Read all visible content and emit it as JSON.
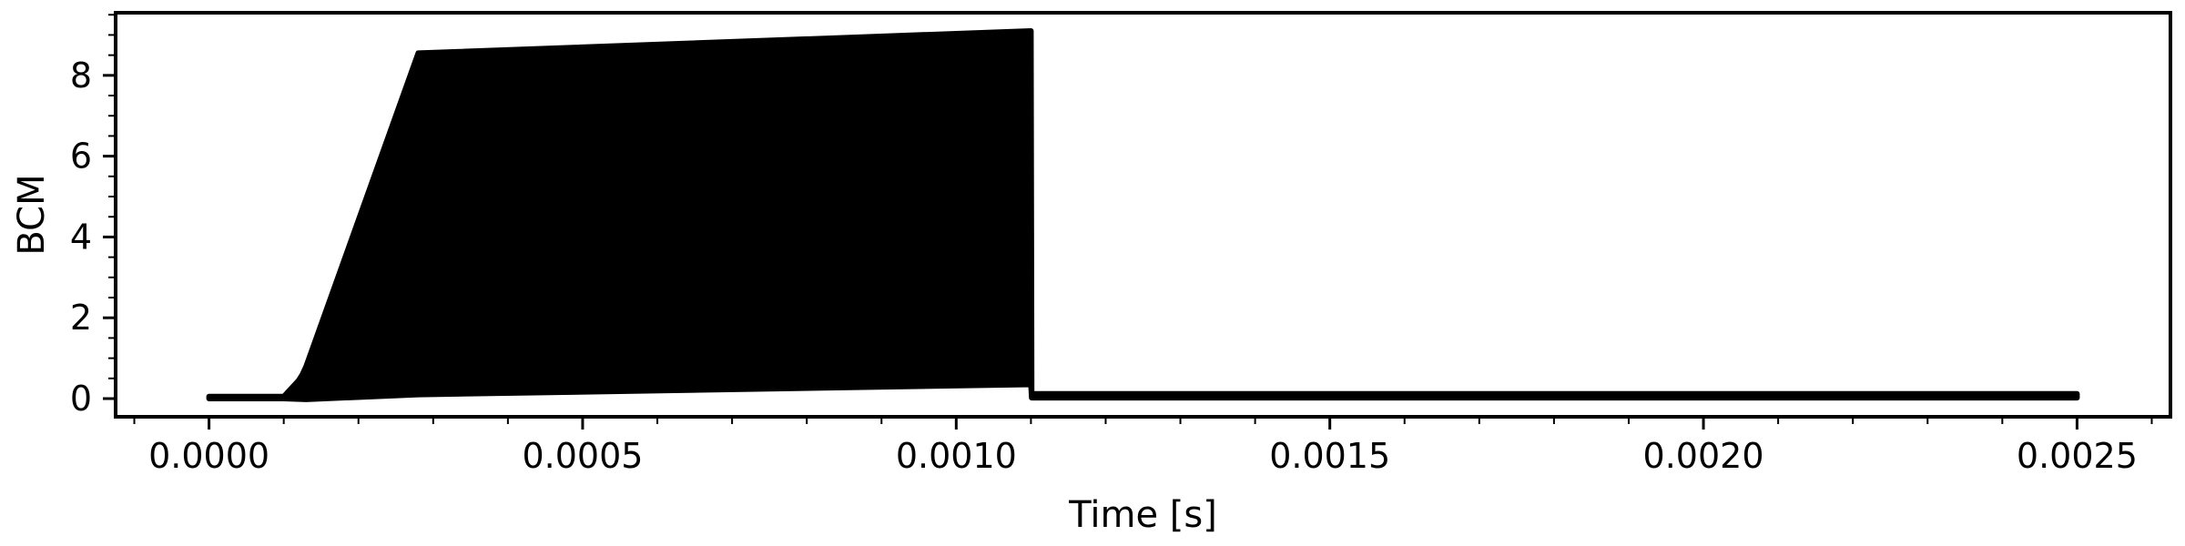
{
  "chart_data": {
    "type": "line",
    "title": "",
    "xlabel": "Time [s]",
    "ylabel": "BCM",
    "xlim": [
      -0.000125,
      0.002625
    ],
    "ylim": [
      -0.45,
      9.55
    ],
    "x_ticks": [
      0.0,
      0.0005,
      0.001,
      0.0015,
      0.002,
      0.0025
    ],
    "x_tick_labels": [
      "0.0000",
      "0.0005",
      "0.0010",
      "0.0015",
      "0.0020",
      "0.0025"
    ],
    "y_ticks": [
      0,
      2,
      4,
      6,
      8
    ],
    "y_tick_labels": [
      "0",
      "2",
      "4",
      "6",
      "8"
    ],
    "x_minor_step": 0.0001,
    "y_minor_step": 0.5,
    "grid": false,
    "legend": "none",
    "color": "#000000",
    "series": [
      {
        "upper_envelope": {
          "x": [
            0.0,
            0.0001,
            0.00011,
            0.00012,
            0.000125,
            0.00013,
            0.00028,
            0.0011,
            0.001101,
            0.00111,
            0.0025
          ],
          "y": [
            0.05,
            0.05,
            0.25,
            0.45,
            0.6,
            0.8,
            8.55,
            9.1,
            0.12,
            0.12,
            0.12
          ]
        },
        "lower_envelope": {
          "x": [
            0.0,
            0.0001,
            0.00013,
            0.00028,
            0.0011,
            0.001101,
            0.00111,
            0.0025
          ],
          "y": [
            0.0,
            0.0,
            -0.02,
            0.1,
            0.35,
            0.02,
            0.02,
            0.02
          ]
        }
      }
    ]
  }
}
